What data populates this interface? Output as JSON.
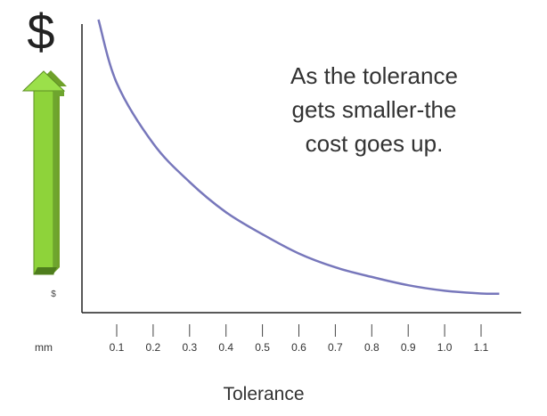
{
  "chart_data": {
    "type": "line",
    "xlabel": "Tolerance",
    "x_unit": "mm",
    "ylabel": "$",
    "y_axis_small_label": "$",
    "tick_labels": [
      "0.1",
      "0.2",
      "0.3",
      "0.4",
      "0.5",
      "0.6",
      "0.7",
      "0.8",
      "0.9",
      "1.0",
      "1.1"
    ],
    "xlim": [
      0.0,
      1.25
    ],
    "y_has_scale": false,
    "grid": false,
    "series": [
      {
        "color": "#7777bb",
        "shape": "inverse-decay",
        "x": [
          0.05,
          0.1,
          0.2,
          0.3,
          0.4,
          0.5,
          0.6,
          0.7,
          0.8,
          0.9,
          1.0,
          1.1,
          1.15
        ],
        "y_relative": [
          1.0,
          0.77,
          0.55,
          0.41,
          0.3,
          0.22,
          0.15,
          0.1,
          0.065,
          0.035,
          0.015,
          0.005,
          0.004
        ]
      }
    ],
    "annotation": [
      "As the tolerance",
      "gets smaller-the",
      "cost goes up."
    ],
    "arrow_color": "#8ed33a",
    "arrow_direction": "up"
  }
}
